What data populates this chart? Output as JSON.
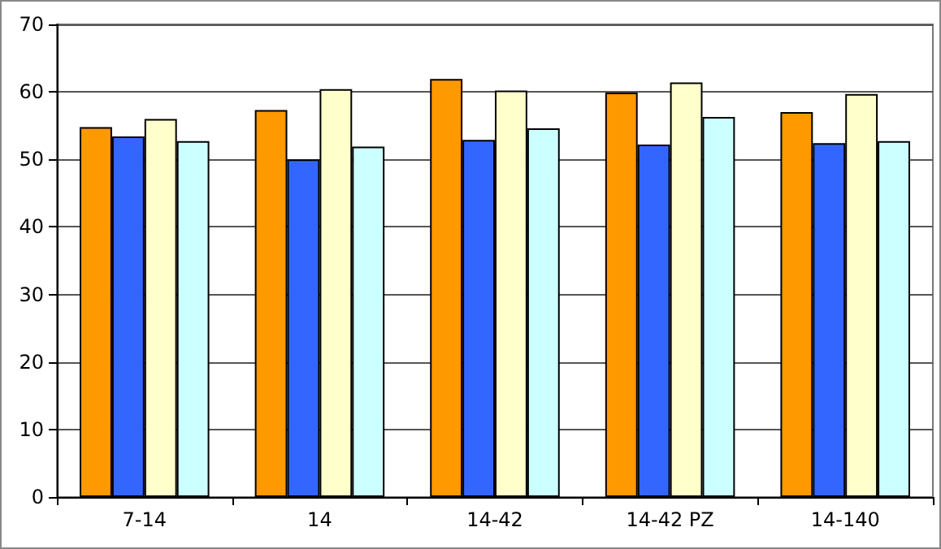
{
  "chart_data": {
    "type": "bar",
    "categories": [
      "7-14",
      "14",
      "14-42",
      "14-42 PZ",
      "14-140"
    ],
    "series": [
      {
        "color": "#ff9900",
        "values": [
          54.8,
          57.3,
          61.9,
          59.9,
          57.0
        ]
      },
      {
        "color": "#3366ff",
        "values": [
          53.4,
          50.0,
          52.9,
          52.2,
          52.4
        ]
      },
      {
        "color": "#ffffcc",
        "values": [
          56.0,
          60.4,
          60.2,
          61.4,
          59.7
        ]
      },
      {
        "color": "#ccffff",
        "values": [
          52.7,
          51.9,
          54.6,
          56.3,
          52.7
        ]
      }
    ],
    "ylim": [
      0,
      70
    ],
    "yticks": [
      0,
      10,
      20,
      30,
      40,
      50,
      60,
      70
    ],
    "grid": "y"
  }
}
